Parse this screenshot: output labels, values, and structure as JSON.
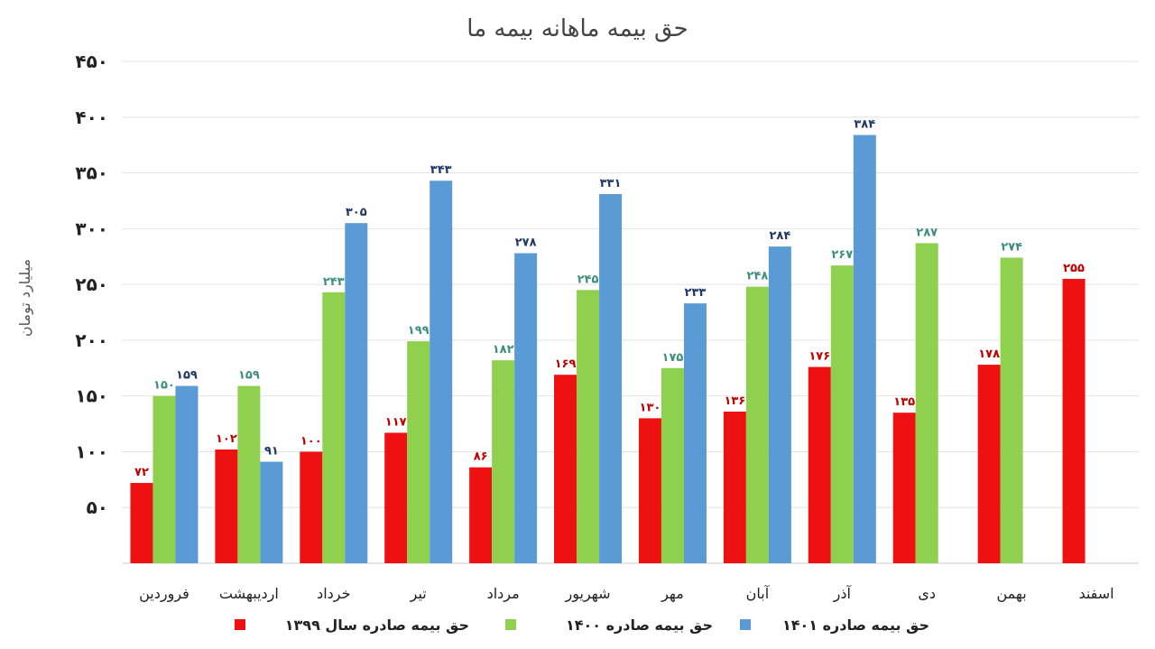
{
  "chart_data": {
    "type": "bar",
    "title": "حق بیمه ماهانه بیمه ما",
    "ylabel": "میلیارد تومان",
    "ylim": [
      0,
      450
    ],
    "yticks": [
      50,
      100,
      150,
      200,
      250,
      300,
      350,
      400,
      450
    ],
    "ytick_labels": [
      "۵۰",
      "۱۰۰",
      "۱۵۰",
      "۲۰۰",
      "۲۵۰",
      "۳۰۰",
      "۳۵۰",
      "۴۰۰",
      "۴۵۰"
    ],
    "grid": true,
    "legend_position": "bottom",
    "categories": [
      "فروردین",
      "اردیبهشت",
      "خرداد",
      "تیر",
      "مرداد",
      "شهریور",
      "مهر",
      "آبان",
      "آذر",
      "دی",
      "بهمن",
      "اسفند"
    ],
    "series": [
      {
        "name": "حق بیمه صادره سال ۱۳۹۹",
        "color": "#ee1111",
        "values": [
          72,
          102,
          100,
          117,
          86,
          169,
          130,
          136,
          176,
          135,
          178,
          255
        ],
        "labels": [
          "۷۲",
          "۱۰۲",
          "۱۰۰",
          "۱۱۷",
          "۸۶",
          "۱۶۹",
          "۱۳۰",
          "۱۳۶",
          "۱۷۶",
          "۱۳۵",
          "۱۷۸",
          "۲۵۵"
        ]
      },
      {
        "name": "حق بیمه صادره ۱۴۰۰",
        "color": "#8fd14f",
        "values": [
          150,
          159,
          243,
          199,
          182,
          245,
          175,
          248,
          267,
          287,
          274,
          null
        ],
        "labels": [
          "۱۵۰",
          "۱۵۹",
          "۲۴۳",
          "۱۹۹",
          "۱۸۲",
          "۲۴۵",
          "۱۷۵",
          "۲۴۸",
          "۲۶۷",
          "۲۸۷",
          "۲۷۴",
          ""
        ]
      },
      {
        "name": "حق بیمه صادره ۱۴۰۱",
        "color": "#5b9bd5",
        "values": [
          159,
          91,
          305,
          343,
          278,
          331,
          233,
          284,
          384,
          null,
          null,
          null
        ],
        "labels": [
          "۱۵۹",
          "۹۱",
          "۳۰۵",
          "۳۴۳",
          "۲۷۸",
          "۳۳۱",
          "۲۳۳",
          "۲۸۴",
          "۳۸۴",
          "",
          "",
          ""
        ]
      }
    ]
  }
}
